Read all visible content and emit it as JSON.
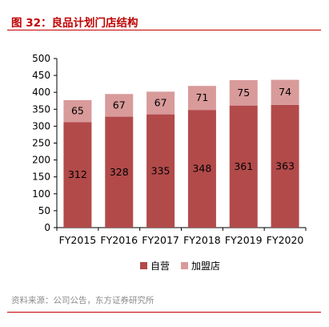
{
  "header": {
    "figure_title": "图 32：良品计划门店结构"
  },
  "footer": {
    "source": "资料来源：公司公告，东方证券研究所"
  },
  "colors": {
    "direct": "#b24a4a",
    "franchise": "#d99a9a",
    "title": "#c00000"
  },
  "chart_data": {
    "type": "bar",
    "stacked": true,
    "title": "",
    "xlabel": "",
    "ylabel": "",
    "categories": [
      "FY2015",
      "FY2016",
      "FY2017",
      "FY2018",
      "FY2019",
      "FY2020"
    ],
    "series": [
      {
        "name": "自营",
        "values": [
          312,
          328,
          335,
          348,
          361,
          363
        ],
        "color": "#b24a4a"
      },
      {
        "name": "加盟店",
        "values": [
          65,
          67,
          67,
          71,
          75,
          74
        ],
        "color": "#d99a9a"
      }
    ],
    "ylim": [
      0,
      500
    ],
    "yticks": [
      0,
      50,
      100,
      150,
      200,
      250,
      300,
      350,
      400,
      450,
      500
    ],
    "grid": false,
    "legend_position": "bottom"
  }
}
